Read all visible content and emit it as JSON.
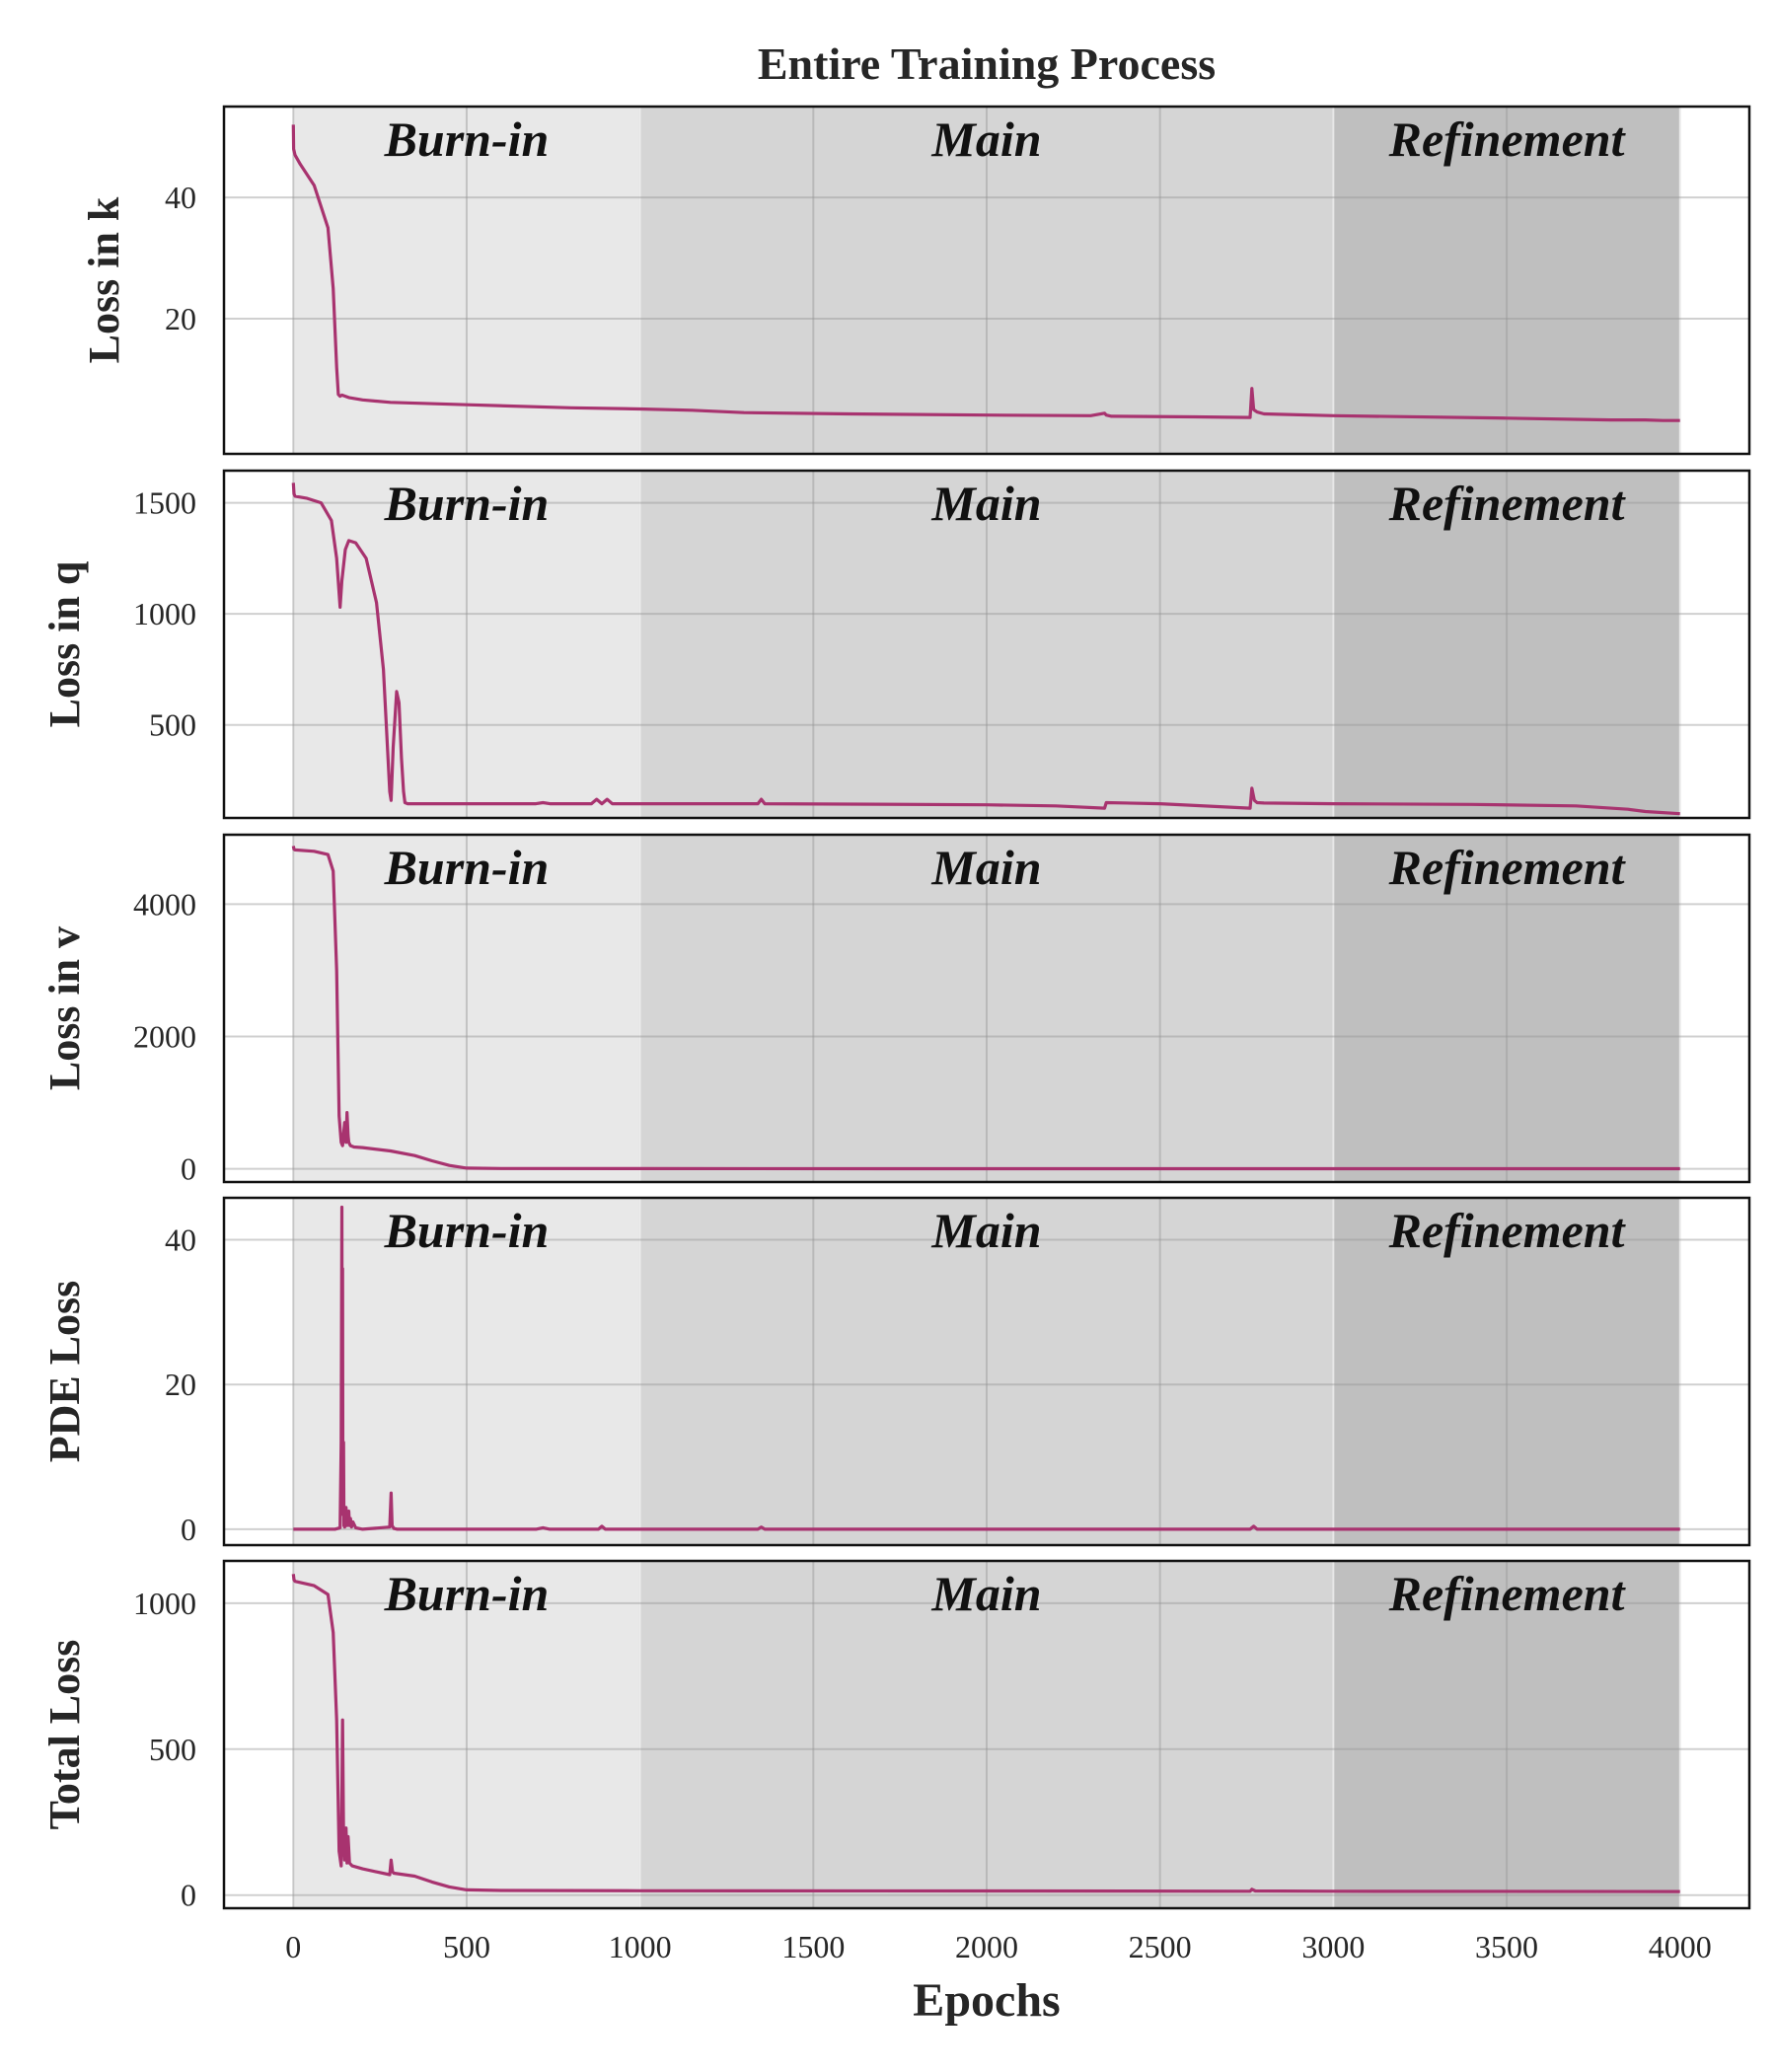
{
  "chart_data": {
    "type": "line",
    "title": "Entire Training Process",
    "xlabel": "Epochs",
    "xlim": [
      -200,
      4200
    ],
    "xticks": [
      0,
      500,
      1000,
      1500,
      2000,
      2500,
      3000,
      3500,
      4000
    ],
    "grid": true,
    "line_color": "#a8336f",
    "phases": [
      {
        "label": "Burn-in",
        "start": 0,
        "end": 1000,
        "shade": "#e8e8e8"
      },
      {
        "label": "Main",
        "start": 1000,
        "end": 3000,
        "shade": "#d5d5d5"
      },
      {
        "label": "Refinement",
        "start": 3000,
        "end": 4000,
        "shade": "#bfbfbf"
      }
    ],
    "panels": [
      {
        "ylabel": "Loss in k",
        "ylim": [
          -2.3,
          55
        ],
        "yticks": [
          20,
          40
        ],
        "series": [
          {
            "x": [
              0,
              1,
              5,
              20,
              60,
              100,
              115,
              125,
              130,
              135,
              140,
              150,
              160,
              200,
              280,
              500,
              800,
              1000,
              1150,
              1300,
              1600,
              2000,
              2300,
              2340,
              2345,
              2360,
              2600,
              2760,
              2765,
              2770,
              2780,
              2800,
              3000,
              3500,
              3800,
              3900,
              3950,
              4000
            ],
            "y": [
              52,
              48,
              47,
              45.5,
              42,
              35,
              25,
              12,
              7.5,
              7.2,
              7.4,
              7.2,
              7,
              6.6,
              6.2,
              5.8,
              5.3,
              5.1,
              4.9,
              4.5,
              4.3,
              4.1,
              4.0,
              4.4,
              4.1,
              3.9,
              3.8,
              3.7,
              8.5,
              5.0,
              4.6,
              4.3,
              4.0,
              3.6,
              3.3,
              3.3,
              3.2,
              3.2
            ]
          }
        ]
      },
      {
        "ylabel": "Loss in q",
        "ylim": [
          81,
          1645
        ],
        "yticks": [
          500,
          1000,
          1500
        ],
        "series": [
          {
            "x": [
              0,
              2,
              5,
              40,
              80,
              110,
              125,
              135,
              140,
              150,
              160,
              180,
              210,
              240,
              260,
              270,
              278,
              282,
              288,
              298,
              305,
              312,
              318,
              322,
              330,
              400,
              700,
              720,
              740,
              860,
              875,
              890,
              905,
              920,
              1000,
              1200,
              1340,
              1350,
              1360,
              1600,
              2000,
              2200,
              2340,
              2345,
              2500,
              2760,
              2765,
              2772,
              2780,
              2800,
              3000,
              3400,
              3700,
              3850,
              3900,
              4000
            ],
            "y": [
              1590,
              1540,
              1530,
              1520,
              1500,
              1420,
              1250,
              1030,
              1150,
              1290,
              1330,
              1320,
              1250,
              1050,
              750,
              450,
              200,
              160,
              400,
              650,
              600,
              350,
              200,
              150,
              145,
              145,
              145,
              150,
              145,
              145,
              165,
              145,
              165,
              145,
              145,
              145,
              145,
              165,
              145,
              143,
              140,
              135,
              125,
              150,
              145,
              125,
              215,
              160,
              150,
              148,
              145,
              142,
              135,
              120,
              110,
              100
            ]
          }
        ]
      },
      {
        "ylabel": "Loss in v",
        "ylim": [
          -200,
          5050
        ],
        "yticks": [
          0,
          2000,
          4000
        ],
        "series": [
          {
            "x": [
              0,
              2,
              5,
              60,
              100,
              115,
              125,
              132,
              138,
              142,
              148,
              152,
              155,
              158,
              160,
              165,
              175,
              200,
              280,
              350,
              400,
              450,
              500,
              600,
              1000,
              2000,
              3000,
              4000
            ],
            "y": [
              4880,
              4830,
              4820,
              4800,
              4750,
              4500,
              3000,
              800,
              400,
              350,
              700,
              400,
              850,
              500,
              400,
              350,
              330,
              320,
              270,
              200,
              120,
              50,
              10,
              5,
              3,
              2,
              2,
              2
            ]
          }
        ]
      },
      {
        "ylabel": "PDE Loss",
        "ylim": [
          -2.2,
          45.8
        ],
        "yticks": [
          0,
          20,
          40
        ],
        "series": [
          {
            "x": [
              0,
              120,
              135,
              138,
              140,
              141,
              142,
              143,
              144,
              145,
              146,
              147,
              148,
              150,
              152,
              155,
              158,
              160,
              162,
              165,
              168,
              172,
              180,
              200,
              278,
              282,
              285,
              290,
              300,
              500,
              700,
              720,
              740,
              880,
              890,
              900,
              1000,
              1340,
              1350,
              1360,
              2000,
              2760,
              2770,
              2780,
              3000,
              4000
            ],
            "y": [
              0,
              0,
              0.2,
              12,
              44.5,
              20,
              36,
              6,
              2,
              12,
              0.5,
              3,
              0.3,
              1.5,
              3,
              0.5,
              2,
              2.5,
              0.5,
              1.5,
              0.3,
              1,
              0.2,
              0,
              0.3,
              5,
              0.5,
              0.1,
              0,
              0,
              0,
              0.2,
              0,
              0,
              0.4,
              0,
              0,
              0,
              0.3,
              0,
              0,
              0,
              0.4,
              0,
              0,
              0
            ]
          }
        ]
      },
      {
        "ylabel": "Total Loss",
        "ylim": [
          -45,
          1145
        ],
        "yticks": [
          0,
          500,
          1000
        ],
        "series": [
          {
            "x": [
              0,
              2,
              5,
              60,
              100,
              115,
              125,
              132,
              138,
              142,
              145,
              148,
              152,
              155,
              158,
              162,
              170,
              200,
              278,
              282,
              286,
              290,
              350,
              400,
              450,
              500,
              600,
              1000,
              2000,
              2760,
              2765,
              2775,
              3000,
              4000
            ],
            "y": [
              1100,
              1080,
              1075,
              1060,
              1030,
              900,
              600,
              150,
              100,
              600,
              200,
              120,
              230,
              110,
              200,
              110,
              100,
              90,
              70,
              120,
              80,
              75,
              65,
              45,
              28,
              18,
              16,
              15,
              14,
              13,
              20,
              14,
              13,
              12
            ]
          }
        ]
      }
    ]
  }
}
